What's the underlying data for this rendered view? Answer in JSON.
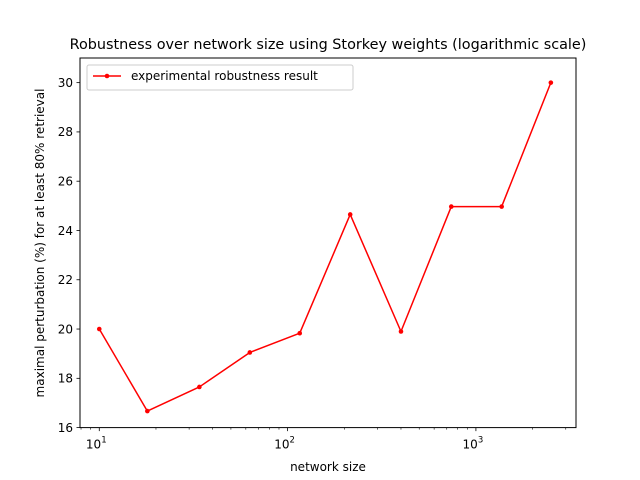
{
  "chart_data": {
    "type": "line",
    "title": "Robustness over network size using Storkey weights (logarithmic scale)",
    "xlabel": "network size",
    "ylabel": "maximal perturbation (%) for at least 80% retrieval",
    "xscale": "log",
    "xlim": [
      7.9,
      3400
    ],
    "ylim": [
      16,
      31
    ],
    "x_ticks": [
      10,
      100,
      1000
    ],
    "x_tick_labels": [
      {
        "base": "10",
        "exp": "1"
      },
      {
        "base": "10",
        "exp": "2"
      },
      {
        "base": "10",
        "exp": "3"
      }
    ],
    "y_ticks": [
      16,
      18,
      20,
      22,
      24,
      26,
      28,
      30
    ],
    "y_tick_labels": [
      "16",
      "18",
      "20",
      "22",
      "24",
      "26",
      "28",
      "30"
    ],
    "grid": false,
    "legend_position": "top-left",
    "series": [
      {
        "name": "experimental robustness result",
        "color": "#ff0000",
        "marker": "dot",
        "x": [
          10,
          18,
          34,
          63,
          116,
          215,
          400,
          740,
          1370,
          2500
        ],
        "y": [
          20.0,
          16.67,
          17.65,
          19.05,
          19.83,
          24.65,
          19.9,
          24.97,
          24.97,
          30.0
        ]
      }
    ]
  }
}
